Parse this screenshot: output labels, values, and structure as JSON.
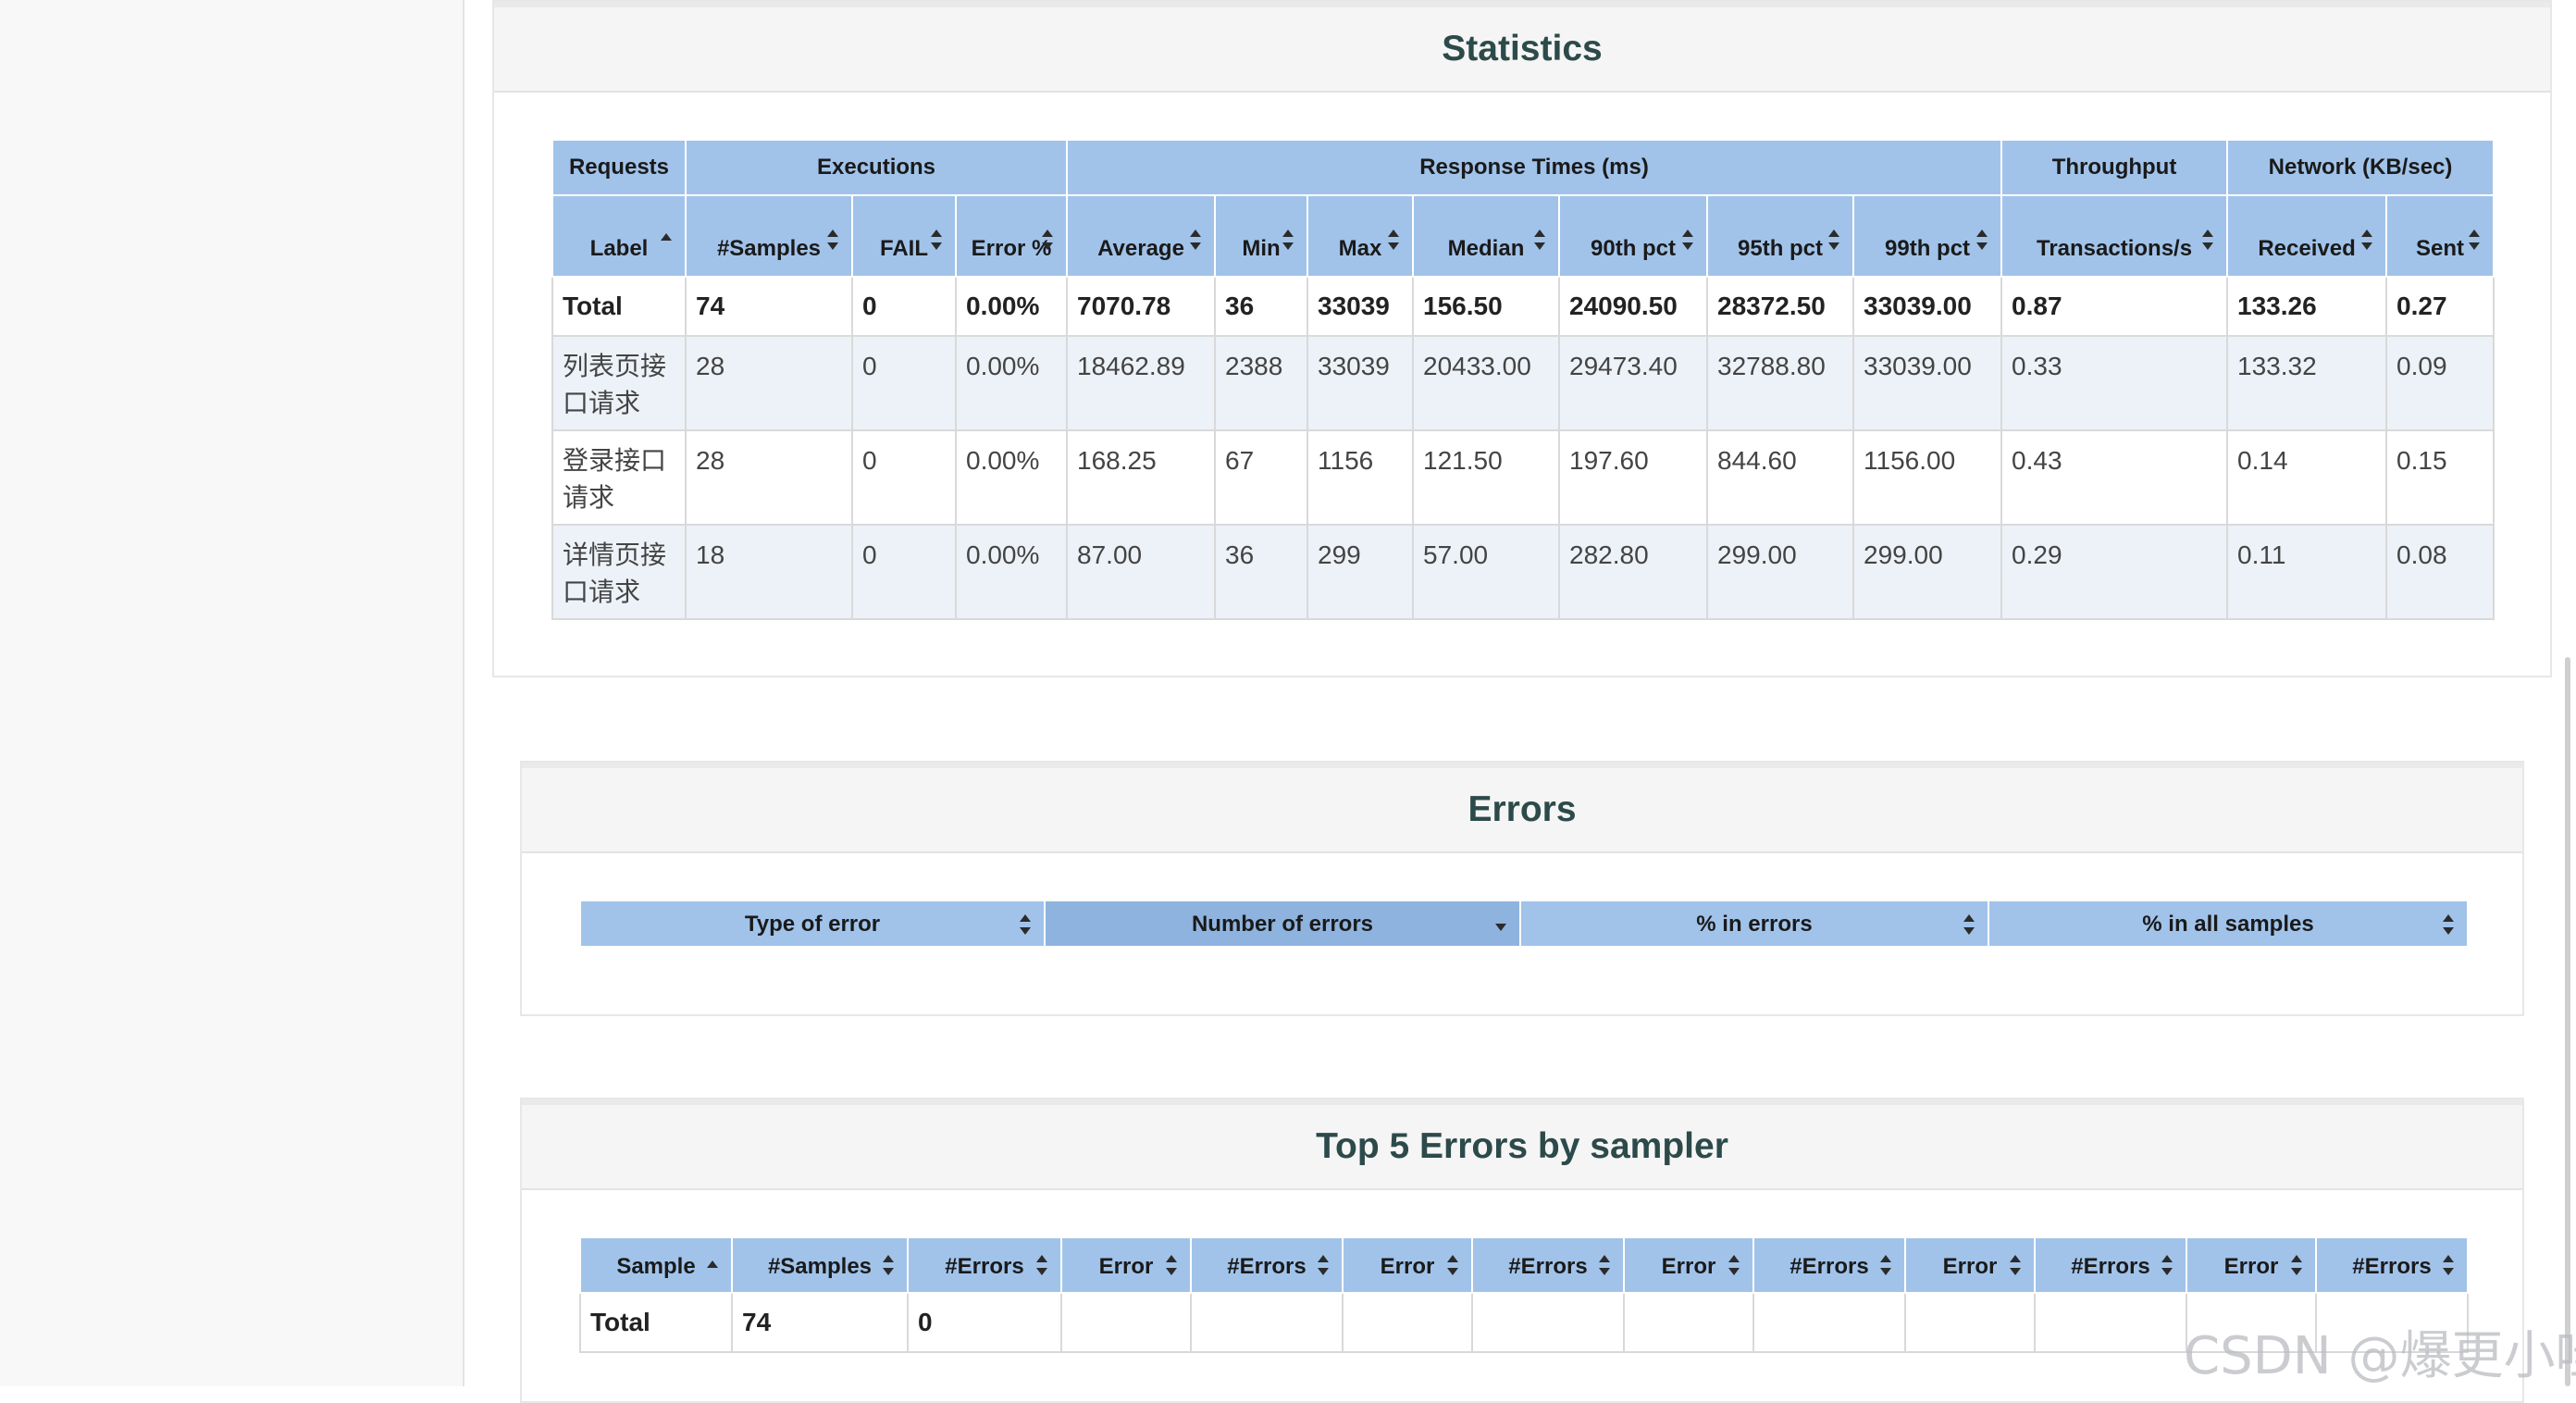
{
  "statistics": {
    "title": "Statistics",
    "groups": [
      "Requests",
      "Executions",
      "Response Times (ms)",
      "Throughput",
      "Network (KB/sec)"
    ],
    "columns": [
      "Label",
      "#Samples",
      "FAIL",
      "Error %",
      "Average",
      "Min",
      "Max",
      "Median",
      "90th pct",
      "95th pct",
      "99th pct",
      "Transactions/s",
      "Received",
      "Sent"
    ],
    "total": [
      "Total",
      "74",
      "0",
      "0.00%",
      "7070.78",
      "36",
      "33039",
      "156.50",
      "24090.50",
      "28372.50",
      "33039.00",
      "0.87",
      "133.26",
      "0.27"
    ],
    "rows": [
      [
        "列表页接口请求",
        "28",
        "0",
        "0.00%",
        "18462.89",
        "2388",
        "33039",
        "20433.00",
        "29473.40",
        "32788.80",
        "33039.00",
        "0.33",
        "133.32",
        "0.09"
      ],
      [
        "登录接口请求",
        "28",
        "0",
        "0.00%",
        "168.25",
        "67",
        "1156",
        "121.50",
        "197.60",
        "844.60",
        "1156.00",
        "0.43",
        "0.14",
        "0.15"
      ],
      [
        "详情页接口请求",
        "18",
        "0",
        "0.00%",
        "87.00",
        "36",
        "299",
        "57.00",
        "282.80",
        "299.00",
        "299.00",
        "0.29",
        "0.11",
        "0.08"
      ]
    ]
  },
  "errors": {
    "title": "Errors",
    "columns": [
      "Type of error",
      "Number of errors",
      "% in errors",
      "% in all samples"
    ]
  },
  "top5": {
    "title": "Top 5 Errors by sampler",
    "columns": [
      "Sample",
      "#Samples",
      "#Errors",
      "Error",
      "#Errors",
      "Error",
      "#Errors",
      "Error",
      "#Errors",
      "Error",
      "#Errors",
      "Error",
      "#Errors"
    ],
    "total": [
      "Total",
      "74",
      "0",
      "",
      "",
      "",
      "",
      "",
      "",
      "",
      "",
      "",
      ""
    ]
  },
  "watermark": "CSDN @爆更小哇",
  "colors": {
    "header": "#a1c3ea",
    "header_sorted": "#8eb3de",
    "row_alt": "#edf2f8",
    "title": "#2d4a4a"
  }
}
